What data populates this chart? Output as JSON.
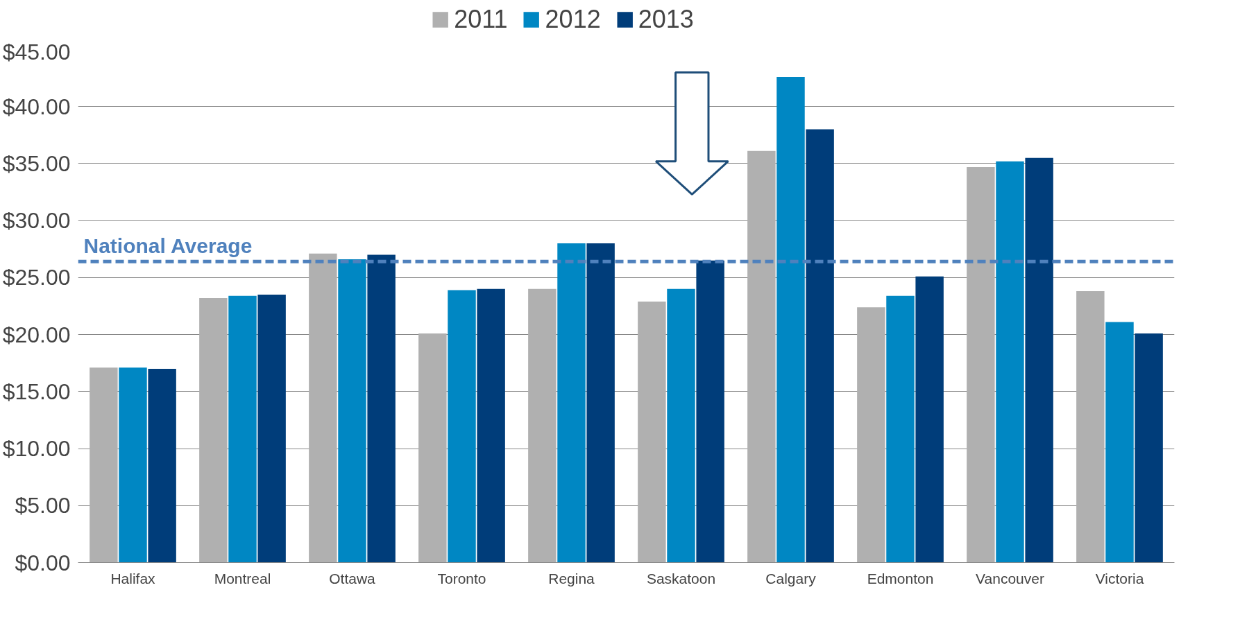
{
  "chart_data": {
    "type": "bar",
    "categories": [
      "Halifax",
      "Montreal",
      "Ottawa",
      "Toronto",
      "Regina",
      "Saskatoon",
      "Calgary",
      "Edmonton",
      "Vancouver",
      "Victoria"
    ],
    "series": [
      {
        "name": "2011",
        "color": "#b0b0b0",
        "values": [
          17.1,
          23.2,
          27.1,
          20.1,
          24.0,
          22.9,
          36.1,
          22.4,
          34.7,
          23.8
        ]
      },
      {
        "name": "2012",
        "color": "#0087c3",
        "values": [
          17.1,
          23.4,
          26.6,
          23.9,
          28.0,
          24.0,
          42.6,
          23.4,
          35.2,
          21.1
        ]
      },
      {
        "name": "2013",
        "color": "#003d7a",
        "values": [
          17.0,
          23.5,
          27.0,
          24.0,
          28.0,
          26.5,
          38.0,
          25.1,
          35.5,
          20.1
        ]
      }
    ],
    "ylim": [
      0,
      45
    ],
    "yticks": [
      {
        "value": 0,
        "label": "$0.00"
      },
      {
        "value": 5,
        "label": "$5.00"
      },
      {
        "value": 10,
        "label": "$10.00"
      },
      {
        "value": 15,
        "label": "$15.00"
      },
      {
        "value": 20,
        "label": "$20.00"
      },
      {
        "value": 25,
        "label": "$25.00"
      },
      {
        "value": 30,
        "label": "$30.00"
      },
      {
        "value": 35,
        "label": "$35.00"
      },
      {
        "value": 40,
        "label": "$40.00"
      },
      {
        "value": 45,
        "label": "$45.00"
      }
    ],
    "ref_lines": [
      {
        "axis": "y",
        "value": 26.4,
        "label": "National Average",
        "color": "#4f81bd",
        "line_style": "dashed"
      }
    ],
    "grid": "y",
    "legend": "top"
  }
}
